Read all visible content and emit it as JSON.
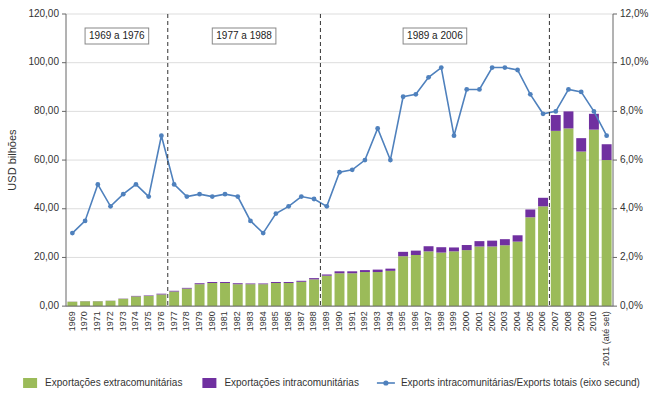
{
  "chart_data": {
    "type": "bar",
    "stacked": true,
    "grid": true,
    "legend": "bottom",
    "y_label": "USD bilhões",
    "categories": [
      "1969",
      "1970",
      "1971",
      "1972",
      "1973",
      "1974",
      "1975",
      "1976",
      "1977",
      "1978",
      "1979",
      "1980",
      "1981",
      "1982",
      "1983",
      "1984",
      "1985",
      "1986",
      "1987",
      "1988",
      "1989",
      "1990",
      "1991",
      "1992",
      "1993",
      "1994",
      "1995",
      "1996",
      "1997",
      "1998",
      "1999",
      "2000",
      "2001",
      "2002",
      "2003",
      "2004",
      "2005",
      "2006",
      "2007",
      "2008",
      "2009",
      "2010",
      "2011 (até set)"
    ],
    "series": [
      {
        "name": "Exportações extracomunitárias",
        "color": "#9bbb59",
        "type": "bar",
        "values": [
          1.8,
          2.0,
          2.0,
          2.2,
          3.0,
          4.0,
          4.2,
          4.8,
          6.0,
          7.2,
          9.0,
          9.5,
          9.5,
          9.0,
          9.0,
          9.0,
          9.5,
          9.5,
          10.0,
          11.0,
          12.5,
          13.5,
          13.5,
          14.0,
          14.0,
          14.5,
          20.5,
          21.0,
          22.5,
          22.0,
          22.5,
          23.0,
          24.5,
          24.5,
          25.0,
          26.5,
          36.5,
          41.0,
          72.0,
          73.0,
          63.5,
          72.5,
          60.0
        ]
      },
      {
        "name": "Exportações intracomunitárias",
        "color": "#7030a0",
        "type": "bar",
        "values": [
          0.05,
          0.05,
          0.05,
          0.05,
          0.1,
          0.2,
          0.2,
          0.3,
          0.3,
          0.3,
          0.4,
          0.4,
          0.4,
          0.4,
          0.3,
          0.3,
          0.4,
          0.4,
          0.4,
          0.5,
          0.5,
          0.8,
          0.8,
          0.8,
          1.0,
          0.9,
          1.8,
          1.8,
          2.1,
          2.2,
          1.6,
          2.1,
          2.2,
          2.4,
          2.5,
          2.6,
          3.2,
          3.5,
          6.5,
          7.0,
          5.5,
          6.5,
          6.5
        ]
      },
      {
        "name": "Exports intracomunitárias/Exports totais (eixo secund)",
        "color": "#4f81bd",
        "type": "line",
        "axis": "y2",
        "marker": "circle",
        "values": [
          0.03,
          0.035,
          0.05,
          0.041,
          0.046,
          0.05,
          0.045,
          0.07,
          0.05,
          0.045,
          0.046,
          0.045,
          0.046,
          0.045,
          0.035,
          0.03,
          0.038,
          0.041,
          0.045,
          0.044,
          0.041,
          0.055,
          0.056,
          0.06,
          0.073,
          0.06,
          0.086,
          0.087,
          0.094,
          0.098,
          0.07,
          0.089,
          0.089,
          0.098,
          0.098,
          0.097,
          0.087,
          0.079,
          0.08,
          0.089,
          0.088,
          0.08,
          0.07
        ]
      }
    ],
    "ylim": [
      0,
      120
    ],
    "yticks": [
      {
        "value": 0,
        "label": "0,00"
      },
      {
        "value": 20,
        "label": "20,00"
      },
      {
        "value": 40,
        "label": "40,00"
      },
      {
        "value": 60,
        "label": "60,00"
      },
      {
        "value": 80,
        "label": "80,00"
      },
      {
        "value": 100,
        "label": "100,00"
      },
      {
        "value": 120,
        "label": "120,00"
      }
    ],
    "y2lim": [
      0,
      0.12
    ],
    "y2ticks": [
      {
        "value": 0,
        "label": "0,0%"
      },
      {
        "value": 0.02,
        "label": "2,0%"
      },
      {
        "value": 0.04,
        "label": "4,0%"
      },
      {
        "value": 0.06,
        "label": "6,0%"
      },
      {
        "value": 0.08,
        "label": "8,0%"
      },
      {
        "value": 0.1,
        "label": "10,0%"
      },
      {
        "value": 0.12,
        "label": "12,0%"
      }
    ],
    "annotations": [
      {
        "text": "1969 a 1976",
        "from": "1969",
        "to": "1976"
      },
      {
        "text": "1977 a 1988",
        "from": "1977",
        "to": "1988"
      },
      {
        "text": "1989 a 2006",
        "from": "1989",
        "to": "2006"
      }
    ]
  }
}
